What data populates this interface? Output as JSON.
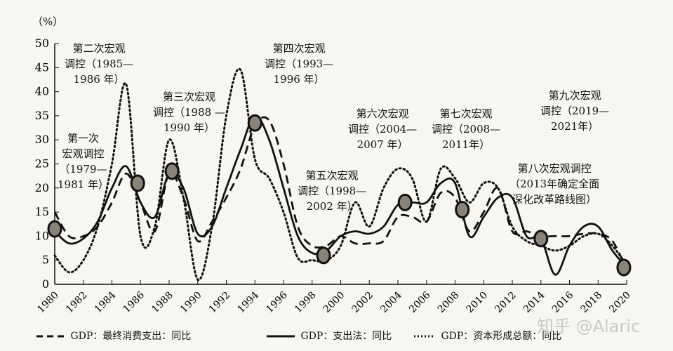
{
  "chart_data": {
    "type": "line",
    "ylabel": "（%）",
    "xlim": [
      1980,
      2020
    ],
    "ylim": [
      0,
      50
    ],
    "yticks": [
      0,
      5,
      10,
      15,
      20,
      25,
      30,
      35,
      40,
      45,
      50
    ],
    "xticks": [
      1980,
      1982,
      1984,
      1986,
      1988,
      1990,
      1992,
      1994,
      1996,
      1998,
      2000,
      2002,
      2004,
      2006,
      2008,
      2010,
      2012,
      2014,
      2016,
      2018,
      2020
    ],
    "grid": false,
    "legend_position": "bottom",
    "x": [
      1980,
      1981,
      1982,
      1983,
      1984,
      1985,
      1986,
      1987,
      1988,
      1989,
      1990,
      1991,
      1992,
      1993,
      1994,
      1995,
      1996,
      1997,
      1998,
      1999,
      2000,
      2001,
      2002,
      2003,
      2004,
      2005,
      2006,
      2007,
      2008,
      2009,
      2010,
      2011,
      2012,
      2013,
      2014,
      2015,
      2016,
      2017,
      2018,
      2019,
      2020
    ],
    "series": [
      {
        "name": "GDP：最终消费支出：同比",
        "style": "dashed",
        "values": [
          15,
          10,
          10,
          12,
          17,
          23,
          17,
          11,
          23,
          18,
          9,
          13,
          18,
          24,
          33,
          34,
          25,
          12,
          8,
          8,
          10,
          8.5,
          8.5,
          9,
          14,
          14,
          13,
          19,
          18,
          11,
          15,
          20,
          11,
          11,
          10,
          10,
          10,
          10.5,
          10.5,
          9,
          3
        ]
      },
      {
        "name": "GDP：支出法：同比",
        "style": "solid",
        "values": [
          11,
          8.5,
          9.5,
          13,
          20,
          24.5,
          17,
          14,
          23,
          20,
          10.5,
          12,
          20,
          28,
          35,
          30,
          20,
          10,
          6.5,
          7,
          10,
          11,
          10.5,
          12,
          16.5,
          17,
          17,
          21,
          21,
          10,
          14,
          18,
          18,
          10,
          9.5,
          2,
          8,
          12,
          12,
          7,
          3.5
        ]
      },
      {
        "name": "GDP：资本形成总额：同比",
        "style": "dotted",
        "values": [
          6,
          2.5,
          5,
          12,
          25,
          41.5,
          10,
          12,
          30,
          18,
          1,
          12,
          35,
          44.5,
          26,
          22,
          15,
          5.5,
          5,
          5,
          8,
          17,
          12,
          20,
          24,
          22,
          13,
          24,
          22,
          17,
          21,
          20,
          12,
          9,
          8,
          7,
          8,
          10,
          10.5,
          8,
          4
        ]
      }
    ],
    "markers": [
      [
        1980,
        11.5
      ],
      [
        1985.8,
        21
      ],
      [
        1988.2,
        23.5
      ],
      [
        1994,
        33.5
      ],
      [
        1998.8,
        6
      ],
      [
        2004.5,
        17
      ],
      [
        2008.5,
        15.5
      ],
      [
        2014,
        9.5
      ],
      [
        2019.8,
        3.5
      ]
    ],
    "annotations": [
      "第一次\n宏观调控\n（1979—\n1981 年）",
      "第二次宏观\n调控（1985—\n1986 年）",
      "第三次宏观\n调控（1988 —\n1990 年）",
      "第四次宏观\n调控（1993—\n1996 年）",
      "第五次宏观\n调控（1998—\n2002 年）",
      "第六次宏观\n调控（2004—\n2007 年）",
      "第七次宏观\n调控（2008—\n2011年）",
      "第八次宏观调控\n（2013年确定全面\n深化改革路线图）",
      "第九次宏观\n调控（2019—\n2021年）"
    ]
  },
  "watermark": "知乎 @Alaric"
}
